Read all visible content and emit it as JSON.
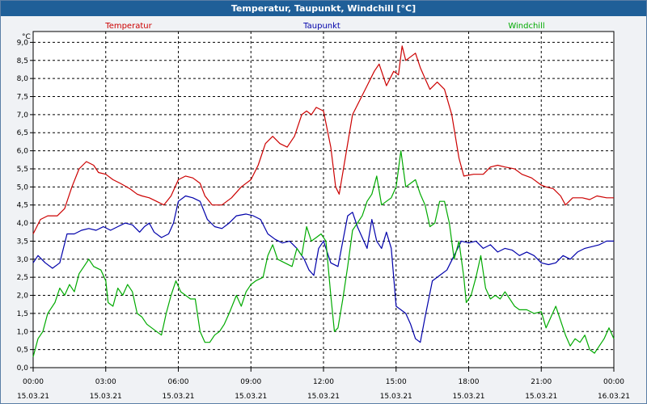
{
  "window": {
    "title": "Temperatur, Taupunkt, Windchill [°C]"
  },
  "chart_data": {
    "type": "line",
    "title": "Temperatur, Taupunkt, Windchill [°C]",
    "ylabel": "°C",
    "ylim": [
      0,
      9.3
    ],
    "xlim": [
      0,
      24
    ],
    "grid": true,
    "legend_placement": "top",
    "y_ticks": [
      "0,0",
      "0,5",
      "1,0",
      "1,5",
      "2,0",
      "2,5",
      "3,0",
      "3,5",
      "4,0",
      "4,5",
      "5,0",
      "5,5",
      "6,0",
      "6,5",
      "7,0",
      "7,5",
      "8,0",
      "8,5",
      "9,0"
    ],
    "x_ticks": [
      {
        "time": "00:00",
        "date": "15.03.21"
      },
      {
        "time": "03:00",
        "date": "15.03.21"
      },
      {
        "time": "06:00",
        "date": "15.03.21"
      },
      {
        "time": "09:00",
        "date": "15.03.21"
      },
      {
        "time": "12:00",
        "date": "15.03.21"
      },
      {
        "time": "15:00",
        "date": "15.03.21"
      },
      {
        "time": "18:00",
        "date": "15.03.21"
      },
      {
        "time": "21:00",
        "date": "15.03.21"
      },
      {
        "time": "00:00",
        "date": "16.03.21"
      }
    ],
    "series": [
      {
        "name": "Temperatur",
        "color": "#cc0000",
        "points": [
          [
            0,
            3.7
          ],
          [
            0.3,
            4.1
          ],
          [
            0.6,
            4.2
          ],
          [
            1,
            4.2
          ],
          [
            1.3,
            4.4
          ],
          [
            1.6,
            5.0
          ],
          [
            1.9,
            5.5
          ],
          [
            2.2,
            5.7
          ],
          [
            2.5,
            5.6
          ],
          [
            2.7,
            5.4
          ],
          [
            3,
            5.35
          ],
          [
            3.3,
            5.2
          ],
          [
            3.6,
            5.1
          ],
          [
            4,
            4.95
          ],
          [
            4.3,
            4.8
          ],
          [
            4.5,
            4.75
          ],
          [
            4.8,
            4.7
          ],
          [
            5.1,
            4.6
          ],
          [
            5.4,
            4.5
          ],
          [
            5.7,
            4.75
          ],
          [
            6,
            5.2
          ],
          [
            6.3,
            5.3
          ],
          [
            6.6,
            5.25
          ],
          [
            6.9,
            5.1
          ],
          [
            7.1,
            4.75
          ],
          [
            7.4,
            4.5
          ],
          [
            7.8,
            4.5
          ],
          [
            8.2,
            4.7
          ],
          [
            8.6,
            5.0
          ],
          [
            9,
            5.2
          ],
          [
            9.3,
            5.6
          ],
          [
            9.6,
            6.2
          ],
          [
            9.9,
            6.4
          ],
          [
            10.2,
            6.2
          ],
          [
            10.5,
            6.1
          ],
          [
            10.8,
            6.4
          ],
          [
            11.1,
            7.0
          ],
          [
            11.3,
            7.1
          ],
          [
            11.5,
            7.0
          ],
          [
            11.7,
            7.2
          ],
          [
            12,
            7.1
          ],
          [
            12.3,
            6.1
          ],
          [
            12.5,
            5.0
          ],
          [
            12.65,
            4.8
          ],
          [
            12.9,
            5.8
          ],
          [
            13.2,
            7.0
          ],
          [
            13.5,
            7.4
          ],
          [
            13.8,
            7.8
          ],
          [
            14.1,
            8.2
          ],
          [
            14.3,
            8.4
          ],
          [
            14.6,
            7.8
          ],
          [
            14.9,
            8.2
          ],
          [
            15.1,
            8.1
          ],
          [
            15.25,
            8.9
          ],
          [
            15.4,
            8.5
          ],
          [
            15.6,
            8.6
          ],
          [
            15.8,
            8.7
          ],
          [
            16,
            8.3
          ],
          [
            16.2,
            8.0
          ],
          [
            16.4,
            7.7
          ],
          [
            16.7,
            7.9
          ],
          [
            17,
            7.7
          ],
          [
            17.3,
            7.0
          ],
          [
            17.6,
            5.8
          ],
          [
            17.8,
            5.3
          ],
          [
            18.2,
            5.35
          ],
          [
            18.6,
            5.35
          ],
          [
            18.9,
            5.55
          ],
          [
            19.2,
            5.6
          ],
          [
            19.5,
            5.55
          ],
          [
            19.9,
            5.5
          ],
          [
            20.2,
            5.35
          ],
          [
            20.6,
            5.25
          ],
          [
            21,
            5.05
          ],
          [
            21.2,
            5.0
          ],
          [
            21.5,
            4.95
          ],
          [
            21.8,
            4.75
          ],
          [
            22,
            4.5
          ],
          [
            22.3,
            4.7
          ],
          [
            22.7,
            4.7
          ],
          [
            23,
            4.65
          ],
          [
            23.3,
            4.75
          ],
          [
            23.7,
            4.7
          ],
          [
            24,
            4.7
          ]
        ]
      },
      {
        "name": "Taupunkt",
        "color": "#0000aa",
        "points": [
          [
            0,
            2.9
          ],
          [
            0.2,
            3.1
          ],
          [
            0.5,
            2.9
          ],
          [
            0.8,
            2.75
          ],
          [
            1.1,
            2.9
          ],
          [
            1.4,
            3.7
          ],
          [
            1.7,
            3.7
          ],
          [
            2,
            3.8
          ],
          [
            2.3,
            3.85
          ],
          [
            2.6,
            3.8
          ],
          [
            2.9,
            3.9
          ],
          [
            3.2,
            3.8
          ],
          [
            3.5,
            3.9
          ],
          [
            3.8,
            4.0
          ],
          [
            4.1,
            3.95
          ],
          [
            4.4,
            3.75
          ],
          [
            4.6,
            3.9
          ],
          [
            4.8,
            4.0
          ],
          [
            5.0,
            3.75
          ],
          [
            5.3,
            3.6
          ],
          [
            5.6,
            3.7
          ],
          [
            5.8,
            4.0
          ],
          [
            6.0,
            4.6
          ],
          [
            6.3,
            4.75
          ],
          [
            6.6,
            4.7
          ],
          [
            6.9,
            4.6
          ],
          [
            7.2,
            4.1
          ],
          [
            7.5,
            3.9
          ],
          [
            7.8,
            3.85
          ],
          [
            8.1,
            4.0
          ],
          [
            8.4,
            4.2
          ],
          [
            8.8,
            4.25
          ],
          [
            9.1,
            4.2
          ],
          [
            9.4,
            4.1
          ],
          [
            9.7,
            3.7
          ],
          [
            10,
            3.55
          ],
          [
            10.3,
            3.45
          ],
          [
            10.6,
            3.5
          ],
          [
            10.9,
            3.3
          ],
          [
            11.2,
            3.0
          ],
          [
            11.4,
            2.7
          ],
          [
            11.6,
            2.55
          ],
          [
            11.8,
            3.3
          ],
          [
            12.0,
            3.5
          ],
          [
            12.3,
            2.9
          ],
          [
            12.6,
            2.8
          ],
          [
            12.8,
            3.5
          ],
          [
            13.0,
            4.2
          ],
          [
            13.2,
            4.3
          ],
          [
            13.4,
            3.9
          ],
          [
            13.6,
            3.6
          ],
          [
            13.8,
            3.3
          ],
          [
            14.0,
            4.1
          ],
          [
            14.2,
            3.5
          ],
          [
            14.4,
            3.3
          ],
          [
            14.6,
            3.75
          ],
          [
            14.8,
            3.3
          ],
          [
            15.0,
            1.7
          ],
          [
            15.2,
            1.6
          ],
          [
            15.4,
            1.5
          ],
          [
            15.6,
            1.2
          ],
          [
            15.8,
            0.8
          ],
          [
            16,
            0.7
          ],
          [
            16.2,
            1.4
          ],
          [
            16.5,
            2.4
          ],
          [
            16.8,
            2.55
          ],
          [
            17.1,
            2.7
          ],
          [
            17.4,
            3.1
          ],
          [
            17.7,
            3.5
          ],
          [
            18,
            3.45
          ],
          [
            18.3,
            3.5
          ],
          [
            18.6,
            3.3
          ],
          [
            18.9,
            3.4
          ],
          [
            19.2,
            3.2
          ],
          [
            19.5,
            3.3
          ],
          [
            19.8,
            3.25
          ],
          [
            20.1,
            3.1
          ],
          [
            20.4,
            3.2
          ],
          [
            20.7,
            3.1
          ],
          [
            21.0,
            2.9
          ],
          [
            21.3,
            2.85
          ],
          [
            21.6,
            2.9
          ],
          [
            21.9,
            3.1
          ],
          [
            22.2,
            3.0
          ],
          [
            22.5,
            3.2
          ],
          [
            22.8,
            3.3
          ],
          [
            23.1,
            3.35
          ],
          [
            23.4,
            3.4
          ],
          [
            23.7,
            3.5
          ],
          [
            24,
            3.5
          ]
        ]
      },
      {
        "name": "Windchill",
        "color": "#00aa00",
        "points": [
          [
            0,
            0.3
          ],
          [
            0.2,
            0.8
          ],
          [
            0.4,
            1.0
          ],
          [
            0.6,
            1.5
          ],
          [
            0.9,
            1.8
          ],
          [
            1.1,
            2.2
          ],
          [
            1.3,
            2.0
          ],
          [
            1.5,
            2.3
          ],
          [
            1.7,
            2.1
          ],
          [
            1.9,
            2.6
          ],
          [
            2.1,
            2.8
          ],
          [
            2.3,
            3.0
          ],
          [
            2.5,
            2.8
          ],
          [
            2.8,
            2.7
          ],
          [
            3.0,
            2.4
          ],
          [
            3.1,
            1.8
          ],
          [
            3.3,
            1.7
          ],
          [
            3.5,
            2.2
          ],
          [
            3.7,
            2.0
          ],
          [
            3.9,
            2.3
          ],
          [
            4.1,
            2.1
          ],
          [
            4.3,
            1.5
          ],
          [
            4.5,
            1.4
          ],
          [
            4.7,
            1.2
          ],
          [
            4.9,
            1.1
          ],
          [
            5.1,
            1.0
          ],
          [
            5.3,
            0.9
          ],
          [
            5.5,
            1.5
          ],
          [
            5.7,
            2.0
          ],
          [
            5.9,
            2.4
          ],
          [
            6.1,
            2.1
          ],
          [
            6.3,
            2.0
          ],
          [
            6.5,
            1.9
          ],
          [
            6.7,
            1.9
          ],
          [
            6.9,
            1.0
          ],
          [
            7.1,
            0.7
          ],
          [
            7.3,
            0.7
          ],
          [
            7.5,
            0.9
          ],
          [
            7.7,
            1.0
          ],
          [
            7.9,
            1.2
          ],
          [
            8.1,
            1.5
          ],
          [
            8.4,
            2.0
          ],
          [
            8.6,
            1.7
          ],
          [
            8.8,
            2.1
          ],
          [
            9.0,
            2.3
          ],
          [
            9.2,
            2.4
          ],
          [
            9.5,
            2.5
          ],
          [
            9.7,
            3.1
          ],
          [
            9.9,
            3.4
          ],
          [
            10.1,
            3.0
          ],
          [
            10.4,
            2.9
          ],
          [
            10.7,
            2.8
          ],
          [
            10.9,
            3.3
          ],
          [
            11.1,
            3.1
          ],
          [
            11.3,
            3.9
          ],
          [
            11.5,
            3.5
          ],
          [
            11.7,
            3.6
          ],
          [
            11.9,
            3.7
          ],
          [
            12.1,
            3.5
          ],
          [
            12.3,
            2.0
          ],
          [
            12.45,
            1.0
          ],
          [
            12.6,
            1.1
          ],
          [
            12.8,
            1.9
          ],
          [
            13.0,
            2.8
          ],
          [
            13.2,
            3.8
          ],
          [
            13.4,
            4.0
          ],
          [
            13.6,
            4.2
          ],
          [
            13.8,
            4.6
          ],
          [
            14.0,
            4.8
          ],
          [
            14.2,
            5.3
          ],
          [
            14.4,
            4.5
          ],
          [
            14.6,
            4.6
          ],
          [
            14.8,
            4.7
          ],
          [
            15.0,
            5.0
          ],
          [
            15.2,
            6.0
          ],
          [
            15.4,
            5.0
          ],
          [
            15.6,
            5.1
          ],
          [
            15.8,
            5.2
          ],
          [
            16.0,
            4.8
          ],
          [
            16.2,
            4.5
          ],
          [
            16.4,
            3.9
          ],
          [
            16.6,
            4.0
          ],
          [
            16.8,
            4.6
          ],
          [
            17.0,
            4.6
          ],
          [
            17.2,
            4.0
          ],
          [
            17.4,
            3.0
          ],
          [
            17.6,
            3.5
          ],
          [
            17.8,
            2.5
          ],
          [
            17.9,
            1.8
          ],
          [
            18.1,
            2.0
          ],
          [
            18.3,
            2.5
          ],
          [
            18.5,
            3.1
          ],
          [
            18.7,
            2.2
          ],
          [
            18.9,
            1.9
          ],
          [
            19.1,
            2.0
          ],
          [
            19.3,
            1.9
          ],
          [
            19.5,
            2.1
          ],
          [
            19.7,
            1.9
          ],
          [
            19.9,
            1.7
          ],
          [
            20.1,
            1.6
          ],
          [
            20.4,
            1.6
          ],
          [
            20.7,
            1.5
          ],
          [
            21.0,
            1.55
          ],
          [
            21.2,
            1.1
          ],
          [
            21.4,
            1.4
          ],
          [
            21.6,
            1.7
          ],
          [
            21.8,
            1.3
          ],
          [
            22.0,
            0.9
          ],
          [
            22.2,
            0.6
          ],
          [
            22.4,
            0.8
          ],
          [
            22.6,
            0.7
          ],
          [
            22.8,
            0.9
          ],
          [
            23.0,
            0.5
          ],
          [
            23.2,
            0.4
          ],
          [
            23.4,
            0.6
          ],
          [
            23.6,
            0.8
          ],
          [
            23.8,
            1.1
          ],
          [
            24,
            0.8
          ]
        ]
      }
    ]
  }
}
